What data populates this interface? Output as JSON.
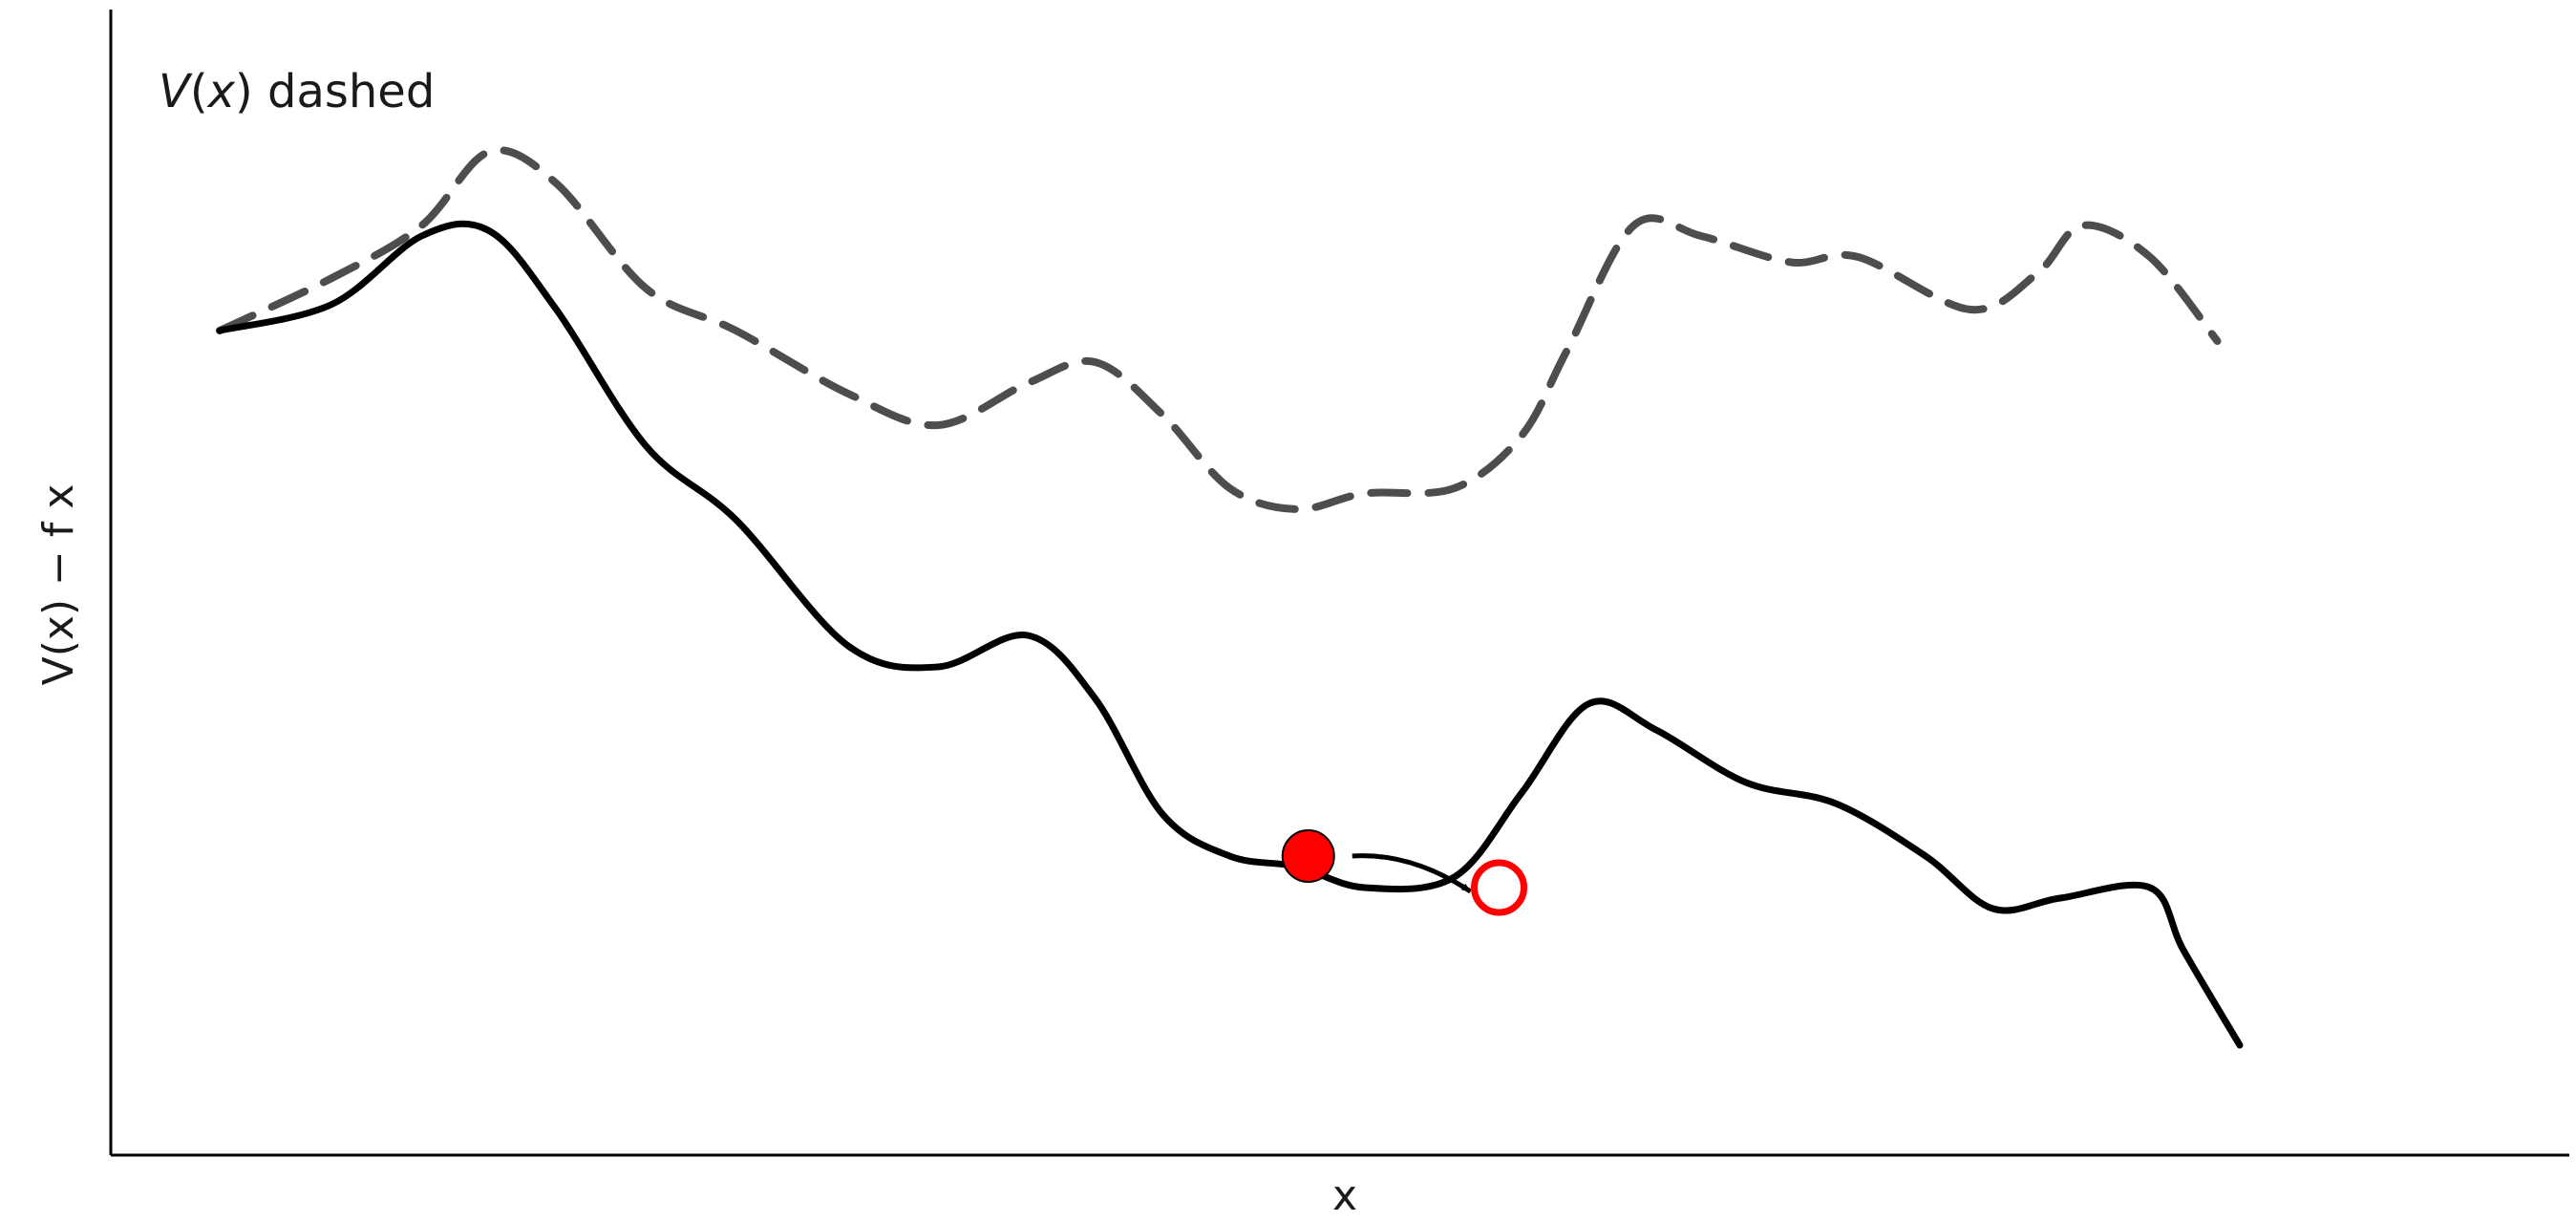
{
  "chart_data": {
    "type": "line",
    "title": "",
    "xlabel": "x",
    "ylabel": "V(x) − f x",
    "grid": false,
    "legend": "none",
    "annotation": {
      "var": "V",
      "paren_open": "(",
      "arg": "x",
      "paren_close": ")",
      "rest": " dashed"
    },
    "xlim": [
      0,
      10
    ],
    "ylim": [
      0,
      10
    ],
    "series": [
      {
        "style": "dashed",
        "color": "#4d4d4d",
        "points": [
          [
            0.0,
            7.4
          ],
          [
            0.5,
            7.9
          ],
          [
            0.9,
            8.4
          ],
          [
            1.2,
            9.1
          ],
          [
            1.5,
            8.8
          ],
          [
            1.9,
            7.8
          ],
          [
            2.3,
            7.4
          ],
          [
            2.8,
            6.8
          ],
          [
            3.2,
            6.5
          ],
          [
            3.6,
            6.9
          ],
          [
            3.9,
            7.1
          ],
          [
            4.2,
            6.6
          ],
          [
            4.5,
            5.9
          ],
          [
            4.8,
            5.7
          ],
          [
            5.1,
            5.85
          ],
          [
            5.5,
            5.9
          ],
          [
            5.8,
            6.4
          ],
          [
            6.0,
            7.2
          ],
          [
            6.3,
            8.4
          ],
          [
            6.6,
            8.3
          ],
          [
            7.0,
            8.05
          ],
          [
            7.3,
            8.1
          ],
          [
            7.8,
            7.6
          ],
          [
            8.1,
            7.95
          ],
          [
            8.3,
            8.4
          ],
          [
            8.6,
            8.1
          ],
          [
            8.9,
            7.3
          ]
        ]
      },
      {
        "style": "solid",
        "color": "#000000",
        "points": [
          [
            0.0,
            7.4
          ],
          [
            0.5,
            7.65
          ],
          [
            0.9,
            8.3
          ],
          [
            1.2,
            8.35
          ],
          [
            1.5,
            7.6
          ],
          [
            1.9,
            6.3
          ],
          [
            2.3,
            5.6
          ],
          [
            2.8,
            4.4
          ],
          [
            3.2,
            4.2
          ],
          [
            3.6,
            4.5
          ],
          [
            3.9,
            3.9
          ],
          [
            4.2,
            2.8
          ],
          [
            4.5,
            2.4
          ],
          [
            4.8,
            2.3
          ],
          [
            5.1,
            2.1
          ],
          [
            5.5,
            2.2
          ],
          [
            5.8,
            3.0
          ],
          [
            6.1,
            3.85
          ],
          [
            6.4,
            3.6
          ],
          [
            6.8,
            3.1
          ],
          [
            7.2,
            2.9
          ],
          [
            7.6,
            2.4
          ],
          [
            7.9,
            1.9
          ],
          [
            8.2,
            2.0
          ],
          [
            8.6,
            2.1
          ],
          [
            8.75,
            1.5
          ],
          [
            9.0,
            0.6
          ]
        ]
      }
    ],
    "markers": [
      {
        "label": "start",
        "x": 4.85,
        "y": 2.4,
        "style": "filled",
        "color": "#ff0000"
      },
      {
        "label": "end",
        "x": 5.7,
        "y": 2.1,
        "style": "hollow",
        "color": "#ff0000"
      }
    ],
    "arrow": {
      "from": [
        4.85,
        2.4
      ],
      "to": [
        5.7,
        2.1
      ],
      "color": "#000000"
    }
  }
}
